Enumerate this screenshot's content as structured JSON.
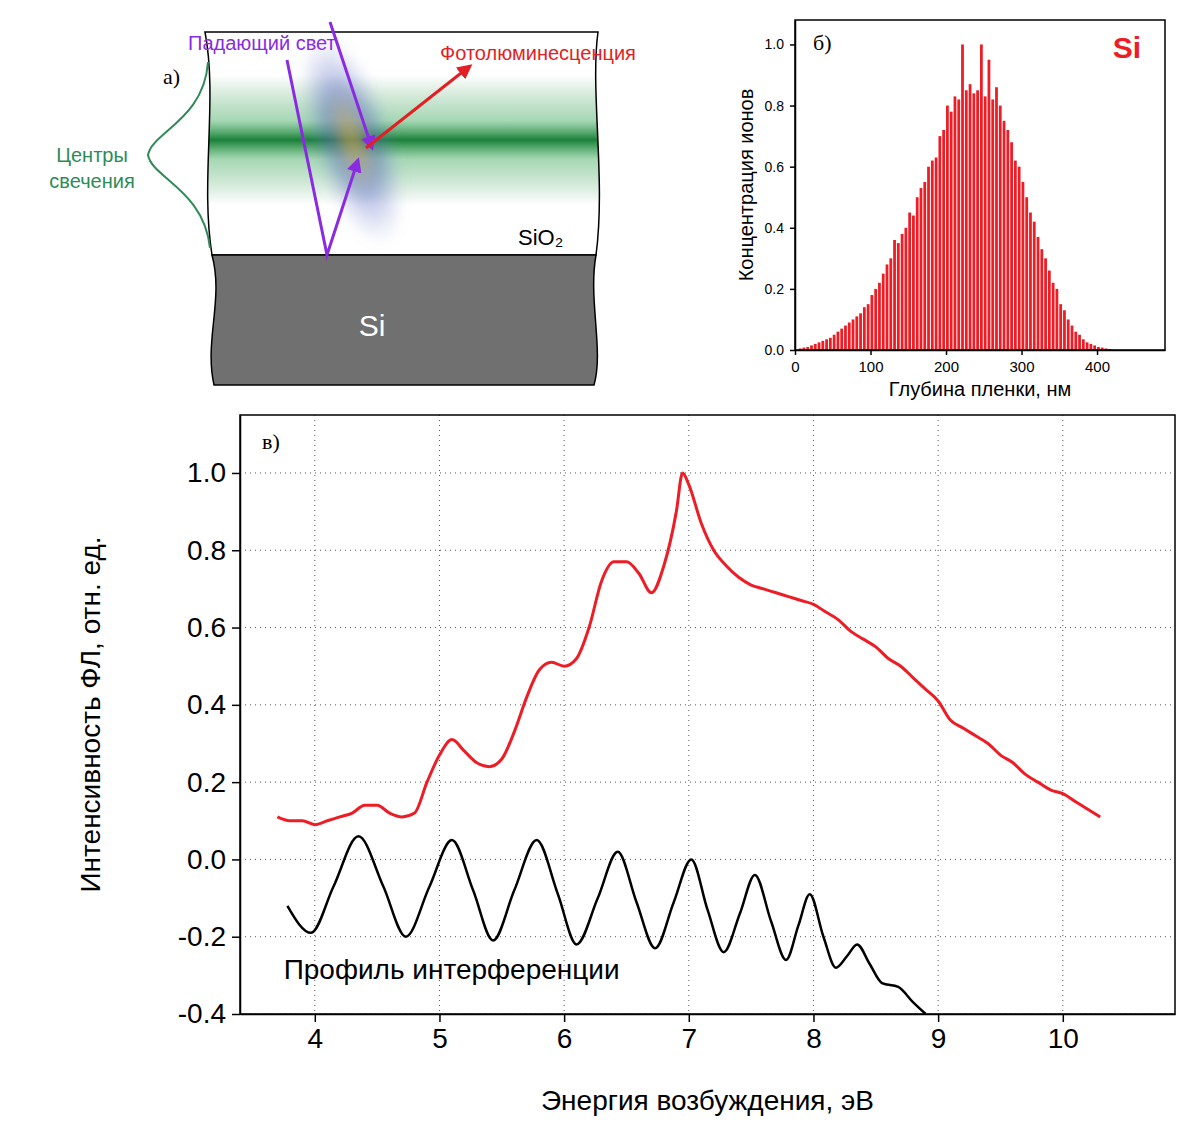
{
  "diagram": {
    "panel_label": "а)",
    "incident_light": "Падающий свет",
    "photoluminescence": "Фотолюминесценция",
    "emission_centers": "Центры свечения",
    "oxide_layer": "SiO₂",
    "substrate": "Si"
  },
  "chart_data": [
    {
      "type": "histogram",
      "title": "Si",
      "panel_label": "б)",
      "x_label": "Глубина пленки, нм",
      "y_label": "Концентрация ионов",
      "color": "#ee1c25",
      "bins": [
        0,
        5,
        10,
        15,
        20,
        25,
        30,
        35,
        40,
        45,
        50,
        55,
        60,
        65,
        70,
        75,
        80,
        85,
        90,
        95,
        100,
        105,
        110,
        115,
        120,
        125,
        130,
        135,
        140,
        145,
        150,
        155,
        160,
        165,
        170,
        175,
        180,
        185,
        190,
        195,
        200,
        205,
        210,
        215,
        220,
        225,
        230,
        235,
        240,
        245,
        250,
        255,
        260,
        265,
        270,
        275,
        280,
        285,
        290,
        295,
        300,
        305,
        310,
        315,
        320,
        325,
        330,
        335,
        340,
        345,
        350,
        355,
        360,
        365,
        370,
        375,
        380,
        385,
        390,
        395,
        400,
        405,
        410,
        415,
        420
      ],
      "values": [
        0.0,
        0.005,
        0.008,
        0.01,
        0.015,
        0.02,
        0.025,
        0.03,
        0.035,
        0.04,
        0.05,
        0.06,
        0.07,
        0.08,
        0.09,
        0.1,
        0.11,
        0.12,
        0.14,
        0.15,
        0.18,
        0.2,
        0.22,
        0.25,
        0.28,
        0.3,
        0.36,
        0.35,
        0.38,
        0.4,
        0.45,
        0.44,
        0.5,
        0.53,
        0.55,
        0.6,
        0.62,
        0.63,
        0.7,
        0.72,
        0.8,
        0.78,
        0.83,
        0.82,
        1.0,
        0.85,
        0.87,
        0.84,
        0.85,
        1.0,
        0.83,
        0.95,
        0.82,
        0.86,
        0.8,
        0.75,
        0.72,
        0.68,
        0.62,
        0.6,
        0.55,
        0.5,
        0.45,
        0.42,
        0.37,
        0.33,
        0.3,
        0.26,
        0.22,
        0.2,
        0.15,
        0.13,
        0.1,
        0.08,
        0.06,
        0.05,
        0.035,
        0.025,
        0.02,
        0.015,
        0.01,
        0.008,
        0.005,
        0.003
      ],
      "xlim": [
        0,
        490
      ],
      "ylim": [
        0,
        1.08
      ],
      "xticks": [
        0,
        100,
        200,
        300,
        400
      ],
      "yticks": [
        {
          "value": 0,
          "label": "0.0"
        },
        0.2,
        0.4,
        0.6,
        0.8,
        {
          "value": 1,
          "label": "1.0"
        }
      ],
      "grid": false
    },
    {
      "type": "line",
      "panel_label": "в)",
      "x_label": "Энергия возбуждения, эВ",
      "y_label": "Интенсивность ФЛ, отн. ед.",
      "xlim": [
        3.4,
        10.9
      ],
      "ylim": [
        -0.4,
        1.15
      ],
      "xticks": [
        4,
        5,
        6,
        7,
        8,
        9,
        10
      ],
      "yticks": [
        -0.4,
        -0.2,
        {
          "value": 0,
          "label": "0.0"
        },
        0.2,
        0.4,
        0.6,
        0.8,
        {
          "value": 1,
          "label": "1.0"
        }
      ],
      "grid": true,
      "series": [
        {
          "color": "#ee1c25",
          "x": [
            3.7,
            3.8,
            3.9,
            4.0,
            4.1,
            4.2,
            4.3,
            4.4,
            4.5,
            4.6,
            4.7,
            4.8,
            4.9,
            5.0,
            5.1,
            5.2,
            5.3,
            5.4,
            5.5,
            5.6,
            5.7,
            5.8,
            5.9,
            6.0,
            6.1,
            6.2,
            6.3,
            6.4,
            6.5,
            6.6,
            6.7,
            6.8,
            6.9,
            6.95,
            7.0,
            7.1,
            7.2,
            7.3,
            7.4,
            7.5,
            7.6,
            7.7,
            7.8,
            7.9,
            8.0,
            8.1,
            8.2,
            8.3,
            8.4,
            8.5,
            8.6,
            8.7,
            8.8,
            8.9,
            9.0,
            9.1,
            9.2,
            9.3,
            9.4,
            9.5,
            9.6,
            9.7,
            9.8,
            9.9,
            10.0,
            10.1,
            10.2,
            10.3
          ],
          "values": [
            0.11,
            0.1,
            0.1,
            0.09,
            0.1,
            0.11,
            0.12,
            0.14,
            0.14,
            0.12,
            0.11,
            0.12,
            0.2,
            0.27,
            0.31,
            0.28,
            0.25,
            0.24,
            0.26,
            0.33,
            0.42,
            0.49,
            0.51,
            0.5,
            0.52,
            0.6,
            0.72,
            0.77,
            0.77,
            0.74,
            0.69,
            0.76,
            0.9,
            1.0,
            0.97,
            0.87,
            0.8,
            0.76,
            0.73,
            0.71,
            0.7,
            0.69,
            0.68,
            0.67,
            0.66,
            0.64,
            0.62,
            0.59,
            0.57,
            0.55,
            0.52,
            0.5,
            0.47,
            0.44,
            0.41,
            0.36,
            0.34,
            0.32,
            0.3,
            0.27,
            0.25,
            0.22,
            0.2,
            0.18,
            0.17,
            0.15,
            0.13,
            0.11
          ]
        },
        {
          "color": "#000000",
          "x": [
            3.78,
            3.97,
            4.15,
            4.35,
            4.55,
            4.73,
            4.92,
            5.1,
            5.27,
            5.43,
            5.6,
            5.78,
            5.95,
            6.1,
            6.27,
            6.43,
            6.58,
            6.73,
            6.88,
            7.02,
            7.15,
            7.28,
            7.41,
            7.53,
            7.66,
            7.78,
            7.88,
            7.97,
            8.08,
            8.18,
            8.27,
            8.35,
            8.45,
            8.55,
            8.68,
            8.8,
            8.9
          ],
          "values": [
            -0.12,
            -0.19,
            -0.07,
            0.06,
            -0.07,
            -0.2,
            -0.07,
            0.05,
            -0.08,
            -0.21,
            -0.08,
            0.05,
            -0.09,
            -0.22,
            -0.1,
            0.02,
            -0.11,
            -0.23,
            -0.11,
            0.0,
            -0.13,
            -0.24,
            -0.14,
            -0.04,
            -0.16,
            -0.26,
            -0.17,
            -0.09,
            -0.2,
            -0.28,
            -0.25,
            -0.22,
            -0.27,
            -0.32,
            -0.33,
            -0.37,
            -0.4
          ]
        }
      ],
      "annotations": [
        {
          "text": "Профиль интерференции",
          "x": 3.75,
          "y": -0.31
        }
      ]
    }
  ]
}
